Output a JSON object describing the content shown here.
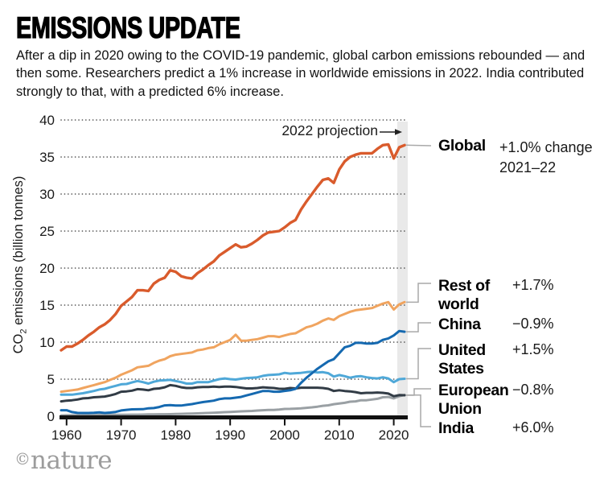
{
  "header": {
    "title": "EMISSIONS UPDATE",
    "subtitle": "After a dip in 2020 owing to the COVID-19 pandemic, global carbon emissions rebounded — and then some. Researchers predict a 1% increase in worldwide emissions in 2022. India contributed strongly to that, with a predicted 6% increase."
  },
  "chart_data": {
    "type": "line",
    "ylabel": "CO2 emissions (billion tonnes)",
    "ylabel_parts": {
      "pre": "CO",
      "sub": "2",
      "rest": " emissions (billion tonnes)"
    },
    "ylim": [
      0,
      40
    ],
    "yticks": [
      0,
      5,
      10,
      15,
      20,
      25,
      30,
      35,
      40
    ],
    "xticks": [
      1960,
      1970,
      1980,
      1990,
      2000,
      2010,
      2020
    ],
    "grid": "horizontal-dotted",
    "projection": {
      "label": "2022 projection",
      "year": 2022
    },
    "x": [
      1959,
      1960,
      1961,
      1962,
      1963,
      1964,
      1965,
      1966,
      1967,
      1968,
      1969,
      1970,
      1971,
      1972,
      1973,
      1974,
      1975,
      1976,
      1977,
      1978,
      1979,
      1980,
      1981,
      1982,
      1983,
      1984,
      1985,
      1986,
      1987,
      1988,
      1989,
      1990,
      1991,
      1992,
      1993,
      1994,
      1995,
      1996,
      1997,
      1998,
      1999,
      2000,
      2001,
      2002,
      2003,
      2004,
      2005,
      2006,
      2007,
      2008,
      2009,
      2010,
      2011,
      2012,
      2013,
      2014,
      2015,
      2016,
      2017,
      2018,
      2019,
      2020,
      2021,
      2022
    ],
    "series": [
      {
        "name": "Global",
        "color": "#d95b2c",
        "change": "+1.0% change",
        "change2": "2021–22",
        "values": [
          8.9,
          9.4,
          9.4,
          9.8,
          10.3,
          10.9,
          11.4,
          12.0,
          12.4,
          13.0,
          13.8,
          14.9,
          15.5,
          16.1,
          17.0,
          17.0,
          16.9,
          17.9,
          18.4,
          18.7,
          19.7,
          19.5,
          18.9,
          18.7,
          18.6,
          19.3,
          19.8,
          20.4,
          20.9,
          21.7,
          22.2,
          22.7,
          23.2,
          22.8,
          22.9,
          23.3,
          23.8,
          24.4,
          24.8,
          24.9,
          25.0,
          25.5,
          26.1,
          26.5,
          27.9,
          29.0,
          30.0,
          31.0,
          31.9,
          32.1,
          31.5,
          33.3,
          34.4,
          35.0,
          35.3,
          35.5,
          35.5,
          35.5,
          36.1,
          36.6,
          36.7,
          34.8,
          36.3,
          36.6
        ]
      },
      {
        "name": "Rest of world",
        "color": "#f0a45f",
        "change": "+1.7%",
        "values": [
          3.3,
          3.4,
          3.5,
          3.6,
          3.8,
          4.0,
          4.2,
          4.4,
          4.6,
          4.9,
          5.2,
          5.6,
          5.9,
          6.2,
          6.6,
          6.7,
          6.8,
          7.2,
          7.5,
          7.7,
          8.1,
          8.3,
          8.4,
          8.5,
          8.6,
          8.9,
          9.0,
          9.2,
          9.3,
          9.7,
          10.0,
          10.3,
          11.0,
          10.2,
          10.2,
          10.3,
          10.4,
          10.6,
          10.8,
          10.8,
          10.7,
          10.9,
          11.1,
          11.2,
          11.6,
          12.0,
          12.2,
          12.5,
          12.9,
          13.2,
          13.0,
          13.5,
          13.8,
          14.1,
          14.3,
          14.4,
          14.5,
          14.6,
          14.9,
          15.2,
          15.4,
          14.4,
          15.1,
          15.4
        ]
      },
      {
        "name": "China",
        "color": "#1569b0",
        "change": "−0.9%",
        "values": [
          0.8,
          0.8,
          0.55,
          0.45,
          0.44,
          0.44,
          0.47,
          0.52,
          0.43,
          0.49,
          0.58,
          0.77,
          0.86,
          0.92,
          0.94,
          0.95,
          1.06,
          1.1,
          1.24,
          1.46,
          1.5,
          1.45,
          1.44,
          1.53,
          1.63,
          1.77,
          1.9,
          2.0,
          2.1,
          2.3,
          2.4,
          2.4,
          2.5,
          2.6,
          2.8,
          3.0,
          3.2,
          3.4,
          3.4,
          3.3,
          3.3,
          3.4,
          3.5,
          3.7,
          4.5,
          5.2,
          5.8,
          6.4,
          6.9,
          7.4,
          7.7,
          8.5,
          9.3,
          9.5,
          9.9,
          9.9,
          9.8,
          9.8,
          9.9,
          10.3,
          10.5,
          10.9,
          11.5,
          11.4
        ]
      },
      {
        "name": "United States",
        "color": "#4fa8d8",
        "change": "+1.5%",
        "values": [
          2.9,
          2.9,
          2.9,
          3.0,
          3.1,
          3.25,
          3.4,
          3.6,
          3.7,
          3.9,
          4.1,
          4.3,
          4.35,
          4.55,
          4.75,
          4.6,
          4.4,
          4.65,
          4.8,
          4.85,
          4.9,
          4.75,
          4.6,
          4.4,
          4.4,
          4.6,
          4.6,
          4.6,
          4.8,
          5.0,
          5.1,
          5.0,
          4.95,
          5.05,
          5.15,
          5.2,
          5.25,
          5.45,
          5.55,
          5.6,
          5.65,
          5.85,
          5.75,
          5.8,
          5.85,
          5.95,
          6.0,
          5.9,
          5.95,
          5.8,
          5.35,
          5.55,
          5.4,
          5.2,
          5.35,
          5.4,
          5.25,
          5.15,
          5.1,
          5.25,
          5.1,
          4.6,
          5.0,
          5.05
        ]
      },
      {
        "name": "European Union",
        "color": "#323c46",
        "change": "−0.8%",
        "values": [
          2.0,
          2.1,
          2.15,
          2.25,
          2.4,
          2.45,
          2.55,
          2.6,
          2.65,
          2.8,
          3.0,
          3.3,
          3.35,
          3.45,
          3.65,
          3.6,
          3.5,
          3.7,
          3.75,
          3.9,
          4.2,
          4.1,
          3.9,
          3.8,
          3.8,
          3.9,
          3.95,
          3.95,
          4.0,
          3.95,
          4.0,
          4.0,
          3.95,
          3.85,
          3.75,
          3.75,
          3.8,
          3.9,
          3.85,
          3.8,
          3.7,
          3.7,
          3.8,
          3.75,
          3.85,
          3.85,
          3.85,
          3.85,
          3.8,
          3.7,
          3.4,
          3.5,
          3.4,
          3.35,
          3.25,
          3.1,
          3.15,
          3.15,
          3.2,
          3.15,
          3.05,
          2.7,
          2.85,
          2.83
        ]
      },
      {
        "name": "India",
        "color": "#9aa0a4",
        "change": "+6.0%",
        "values": [
          0.1,
          0.12,
          0.12,
          0.13,
          0.14,
          0.14,
          0.15,
          0.16,
          0.16,
          0.17,
          0.18,
          0.19,
          0.2,
          0.21,
          0.21,
          0.22,
          0.24,
          0.25,
          0.26,
          0.26,
          0.27,
          0.29,
          0.32,
          0.34,
          0.36,
          0.38,
          0.41,
          0.44,
          0.47,
          0.5,
          0.54,
          0.58,
          0.61,
          0.65,
          0.67,
          0.71,
          0.76,
          0.8,
          0.84,
          0.85,
          0.9,
          0.98,
          0.99,
          1.02,
          1.06,
          1.13,
          1.2,
          1.28,
          1.4,
          1.47,
          1.62,
          1.71,
          1.8,
          1.96,
          2.0,
          2.15,
          2.15,
          2.25,
          2.35,
          2.55,
          2.6,
          2.4,
          2.7,
          2.86
        ]
      }
    ],
    "colors": {
      "band": "#e9e9e9",
      "grid": "#444444",
      "axis": "#111111",
      "connector": "#a9a9a9"
    }
  },
  "footer": {
    "credit_symbol": "©",
    "credit_name": "nature"
  }
}
